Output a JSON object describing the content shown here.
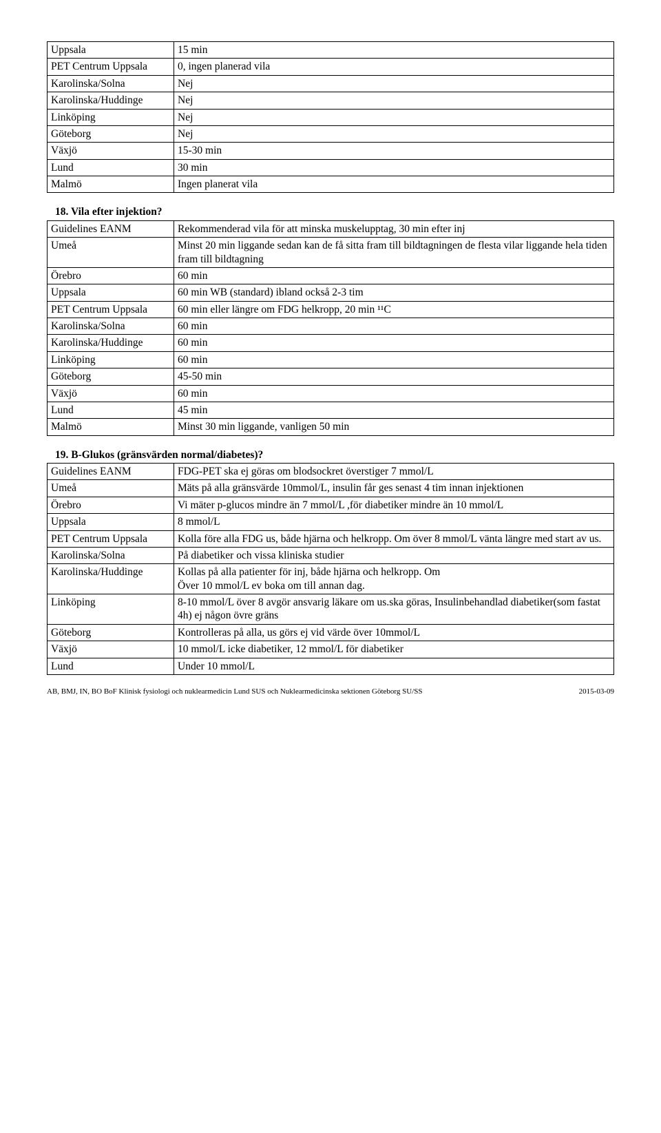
{
  "table17": {
    "rows": [
      {
        "site": "Uppsala",
        "val": "15 min"
      },
      {
        "site": "PET Centrum Uppsala",
        "val": "0, ingen planerad vila"
      },
      {
        "site": "Karolinska/Solna",
        "val": "Nej"
      },
      {
        "site": "Karolinska/Huddinge",
        "val": "Nej"
      },
      {
        "site": "Linköping",
        "val": "Nej"
      },
      {
        "site": "Göteborg",
        "val": "Nej"
      },
      {
        "site": "Växjö",
        "val": "15-30 min"
      },
      {
        "site": "Lund",
        "val": "30 min"
      },
      {
        "site": "Malmö",
        "val": "Ingen planerat vila"
      }
    ]
  },
  "section18": {
    "heading": "18. Vila efter injektion?",
    "rows": [
      {
        "site": "Guidelines EANM",
        "val": "Rekommenderad vila för att minska muskelupptag, 30 min efter inj"
      },
      {
        "site": "Umeå",
        "val": "Minst 20 min liggande sedan kan de få sitta fram till bildtagningen de flesta vilar liggande hela tiden fram till bildtagning"
      },
      {
        "site": "Örebro",
        "val": "60 min"
      },
      {
        "site": "Uppsala",
        "val": "60 min WB (standard) ibland också 2-3 tim"
      },
      {
        "site": "PET Centrum Uppsala",
        "val": "60 min eller längre om FDG helkropp, 20 min ¹¹C"
      },
      {
        "site": "Karolinska/Solna",
        "val": "60 min"
      },
      {
        "site": "Karolinska/Huddinge",
        "val": "60 min"
      },
      {
        "site": "Linköping",
        "val": "60 min"
      },
      {
        "site": "Göteborg",
        "val": "45-50 min"
      },
      {
        "site": "Växjö",
        "val": "60 min"
      },
      {
        "site": "Lund",
        "val": "45 min"
      },
      {
        "site": "Malmö",
        "val": "Minst 30 min liggande, vanligen 50 min"
      }
    ]
  },
  "section19": {
    "heading": "19. B-Glukos (gränsvärden normal/diabetes)?",
    "rows": [
      {
        "site": "Guidelines EANM",
        "val": " FDG-PET ska ej göras om blodsockret överstiger 7 mmol/L"
      },
      {
        "site": "Umeå",
        "val": "Mäts på alla gränsvärde 10mmol/L, insulin får ges senast 4 tim innan injektionen"
      },
      {
        "site": "Örebro",
        "val": "Vi mäter p-glucos mindre än 7 mmol/L ,för diabetiker mindre än 10 mmol/L"
      },
      {
        "site": "Uppsala",
        "val": "8 mmol/L"
      },
      {
        "site": "PET Centrum Uppsala",
        "val": "Kolla före alla FDG us, både hjärna och helkropp. Om över 8 mmol/L vänta längre med start av us."
      },
      {
        "site": "Karolinska/Solna",
        "val": "På diabetiker och vissa kliniska studier"
      },
      {
        "site": "Karolinska/Huddinge",
        "val": "Kollas på alla patienter för inj, både hjärna och helkropp. Om\nÖver 10 mmol/L ev boka om till annan dag."
      },
      {
        "site": "Linköping",
        "val": "8-10 mmol/L över 8 avgör ansvarig läkare om us.ska göras, Insulinbehandlad diabetiker(som fastat 4h) ej någon övre gräns"
      },
      {
        "site": "Göteborg",
        "val": " Kontrolleras på alla, us görs ej vid värde över 10mmol/L"
      },
      {
        "site": "Växjö",
        "val": "10 mmol/L icke diabetiker, 12 mmol/L för diabetiker"
      },
      {
        "site": "Lund",
        "val": "Under 10 mmol/L"
      }
    ]
  },
  "footer": {
    "left": "AB, BMJ, IN, BO BoF Klinisk fysiologi och nuklearmedicin Lund SUS och Nuklearmedicinska sektionen  Göteborg SU/SS",
    "right": "2015-03-09"
  }
}
